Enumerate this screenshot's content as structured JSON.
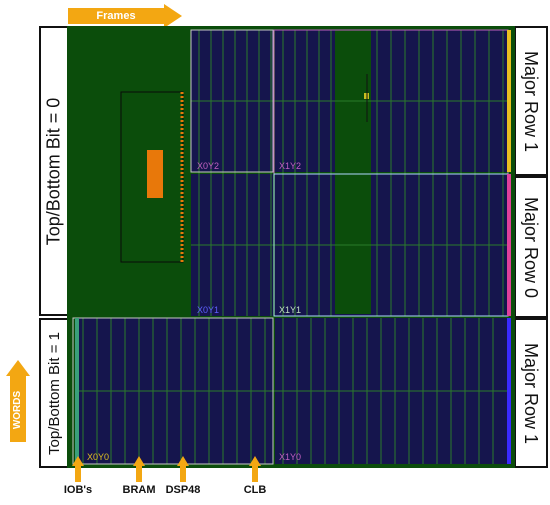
{
  "arrows": {
    "frames": "Frames",
    "words": "WORDS"
  },
  "left_labels": {
    "top": "Top/Bottom Bit = 0",
    "bottom": "Top/Bottom Bit = 1"
  },
  "right_labels": [
    {
      "text": "Major Row 1",
      "color": "#e8c020"
    },
    {
      "text": "Major Row 0",
      "color": "#e0409a"
    },
    {
      "text": "Major Row 1",
      "color": "#3a2aff"
    }
  ],
  "bottom_labels": {
    "iobs": "IOB's",
    "bram": "BRAM",
    "dsp48": "DSP48",
    "clb": "CLB"
  },
  "regions": [
    {
      "label": "X0Y2",
      "color": "#c060c0"
    },
    {
      "label": "X1Y2",
      "color": "#c060c0"
    },
    {
      "label": "X0Y1",
      "color": "#6060ff"
    },
    {
      "label": "X1Y1",
      "color": "#c0e0c0"
    },
    {
      "label": "X0Y0",
      "color": "#e0c020"
    },
    {
      "label": "X1Y0",
      "color": "#c060c0"
    }
  ],
  "colors": {
    "fpga_green": "#0b4d0b",
    "fabric_navy": "#15154d",
    "grid_line": "#2a7a2a",
    "accent_orange": "#f3a712",
    "pblock_orange": "#e8780a"
  }
}
